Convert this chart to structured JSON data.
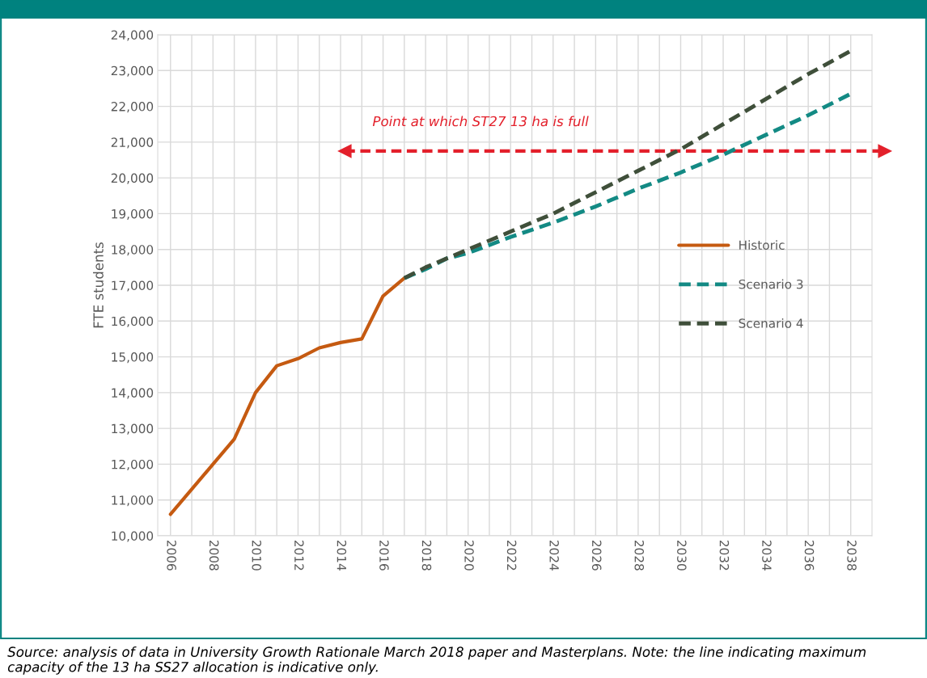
{
  "chart_data": {
    "type": "line",
    "ylabel": "FTE students",
    "series": [
      {
        "name": "Historic",
        "color": "#c55a11",
        "line_style": "solid",
        "x": [
          2006,
          2007,
          2008,
          2009,
          2010,
          2011,
          2012,
          2013,
          2014,
          2015,
          2016,
          2017
        ],
        "values": [
          10600,
          11300,
          12000,
          12700,
          14000,
          14750,
          14950,
          15250,
          15400,
          15500,
          16700,
          17200
        ]
      },
      {
        "name": "Scenario 3",
        "color": "#138a84",
        "line_style": "dashed",
        "x": [
          2017,
          2018,
          2019,
          2020,
          2022,
          2024,
          2026,
          2028,
          2030,
          2032,
          2034,
          2036,
          2038
        ],
        "values": [
          17200,
          17450,
          17750,
          17900,
          18350,
          18750,
          19200,
          19700,
          20150,
          20650,
          21200,
          21750,
          22350
        ]
      },
      {
        "name": "Scenario 4",
        "color": "#3f4f3a",
        "line_style": "dashed",
        "x": [
          2017,
          2018,
          2019,
          2020,
          2022,
          2024,
          2026,
          2028,
          2030,
          2032,
          2034,
          2036,
          2038
        ],
        "values": [
          17200,
          17500,
          17750,
          18000,
          18500,
          19000,
          19600,
          20200,
          20800,
          21500,
          22200,
          22900,
          23550
        ]
      }
    ],
    "xlim": [
      2005.4,
      2039
    ],
    "xticks": [
      2006,
      {
        "value": 2007,
        "label": null
      },
      2008,
      {
        "value": 2009,
        "label": null
      },
      2010,
      {
        "value": 2011,
        "label": null
      },
      2012,
      {
        "value": 2013,
        "label": null
      },
      2014,
      {
        "value": 2015,
        "label": null
      },
      2016,
      {
        "value": 2017,
        "label": null
      },
      2018,
      {
        "value": 2019,
        "label": null
      },
      2020,
      {
        "value": 2021,
        "label": null
      },
      2022,
      {
        "value": 2023,
        "label": null
      },
      2024,
      {
        "value": 2025,
        "label": null
      },
      2026,
      {
        "value": 2027,
        "label": null
      },
      2028,
      {
        "value": 2029,
        "label": null
      },
      2030,
      {
        "value": 2031,
        "label": null
      },
      2032,
      {
        "value": 2033,
        "label": null
      },
      2034,
      {
        "value": 2035,
        "label": null
      },
      2036,
      {
        "value": 2037,
        "label": null
      },
      2038
    ],
    "ylim": [
      10000,
      24000
    ],
    "yticks": [
      {
        "value": 10000,
        "label": "10,000"
      },
      {
        "value": 11000,
        "label": "11,000"
      },
      {
        "value": 12000,
        "label": "12,000"
      },
      {
        "value": 13000,
        "label": "13,000"
      },
      {
        "value": 14000,
        "label": "14,000"
      },
      {
        "value": 15000,
        "label": "15,000"
      },
      {
        "value": 16000,
        "label": "16,000"
      },
      {
        "value": 17000,
        "label": "17,000"
      },
      {
        "value": 18000,
        "label": "18,000"
      },
      {
        "value": 19000,
        "label": "19,000"
      },
      {
        "value": 20000,
        "label": "20,000"
      },
      {
        "value": 21000,
        "label": "21,000"
      },
      {
        "value": 22000,
        "label": "22,000"
      },
      {
        "value": 23000,
        "label": "23,000"
      },
      {
        "value": 24000,
        "label": "24,000"
      }
    ],
    "ref_lines": [
      {
        "axis": "y",
        "value": 20750,
        "label": "Point at which ST27 13 ha is full",
        "color": "#e3202b",
        "line_style": "dashed"
      }
    ],
    "grid": true,
    "legend": "center right",
    "annotations": [
      "Source: analysis of data in University Growth Rationale March 2018 paper and Masterplans. Note: the line indicating maximum capacity of the 13 ha SS27 allocation is indicative only."
    ]
  }
}
